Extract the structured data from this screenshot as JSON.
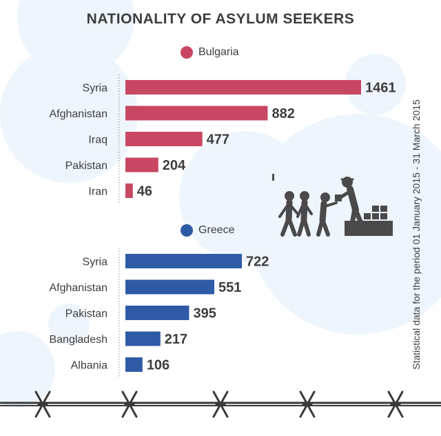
{
  "title": "NATIONALITY OF ASYLUM SEEKERS",
  "side_note": "Statistical data for the period 01 January 2015 - 31 March 2015",
  "colors": {
    "bulgaria": "#c84762",
    "greece": "#2f5aa6",
    "text": "#3d3d3d",
    "bubble": "#eef5fc"
  },
  "icons": [
    "refugees-icon",
    "barbed-wire-icon"
  ],
  "chart_data": [
    {
      "type": "bar",
      "orientation": "horizontal",
      "series": [
        {
          "name": "Bulgaria",
          "values": [
            1461,
            882,
            477,
            204,
            46
          ]
        }
      ],
      "categories": [
        "Syria",
        "Afghanistan",
        "Iraq",
        "Pakistan",
        "Iran"
      ],
      "data_labels": [
        "1461",
        "882",
        "477",
        "204",
        "46"
      ],
      "legend": "top-center"
    },
    {
      "type": "bar",
      "orientation": "horizontal",
      "series": [
        {
          "name": "Greece",
          "values": [
            722,
            551,
            395,
            217,
            106
          ]
        }
      ],
      "categories": [
        "Syria",
        "Afghanistan",
        "Pakistan",
        "Bangladesh",
        "Albania"
      ],
      "data_labels": [
        "722",
        "551",
        "395",
        "217",
        "106"
      ],
      "legend": "top-center"
    }
  ]
}
